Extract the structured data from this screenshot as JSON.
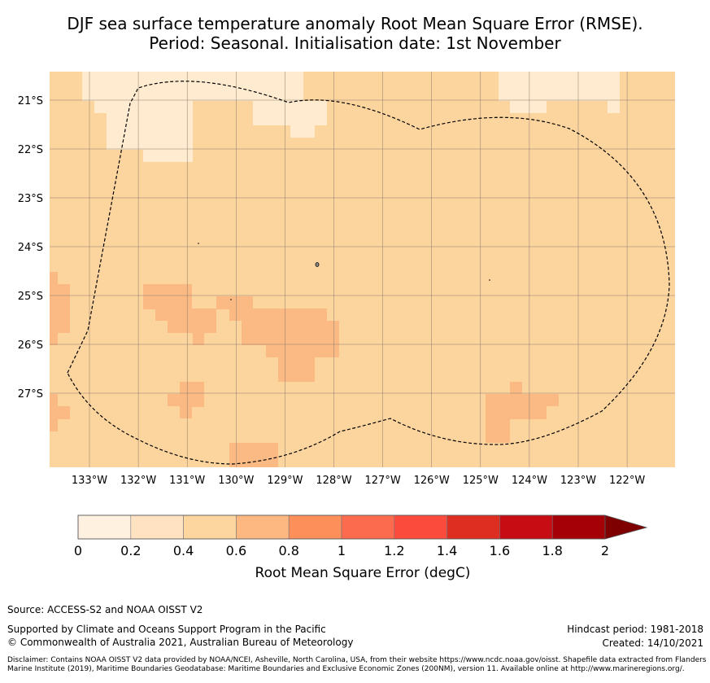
{
  "title": {
    "line1": "DJF sea surface temperature anomaly Root Mean Square Error (RMSE).",
    "line2": "Period: Seasonal. Initialisation date: 1st November"
  },
  "map": {
    "lon_range": [
      -133.8,
      -121.0
    ],
    "lat_range": [
      -28.5,
      -20.45
    ],
    "lon_ticks": [
      "133°W",
      "132°W",
      "131°W",
      "130°W",
      "129°W",
      "128°W",
      "127°W",
      "126°W",
      "125°W",
      "124°W",
      "123°W",
      "122°W"
    ],
    "lat_ticks": [
      "21°S",
      "22°S",
      "23°S",
      "24°S",
      "25°S",
      "26°S",
      "27°S"
    ],
    "grid_color": "#8a7a6a",
    "eez_line_color": "#000000",
    "cell_colors": {
      "lightest": "#ffecd0",
      "base": "#fcd49e",
      "medium": "#fbba84"
    }
  },
  "colorbar": {
    "ticks": [
      "0",
      "0.2",
      "0.4",
      "0.6",
      "0.8",
      "1",
      "1.2",
      "1.4",
      "1.6",
      "1.8",
      "2"
    ],
    "colors": [
      "#fff1e0",
      "#ffe2c2",
      "#fdd59f",
      "#fdb882",
      "#fd8f5b",
      "#fc6b4e",
      "#fb4b3c",
      "#dd2e21",
      "#c70c13",
      "#a50008"
    ],
    "extend_color": "#7f0000",
    "label": "Root Mean Square Error (degC)"
  },
  "footer": {
    "source": "Source: ACCESS-S2 and NOAA OISST V2",
    "support": "Supported by Climate and Oceans Support Program in the Pacific",
    "copyright": "© Commonwealth of Australia 2021, Australian Bureau of Meteorology",
    "hindcast": "Hindcast period: 1981-2018",
    "created": "Created: 14/10/2021",
    "disclaimer": "Disclaimer: Contains NOAA OISST V2 data provided by NOAA/NCEI, Asheville, North Carolina, USA, from their website https://www.ncdc.noaa.gov/oisst. Shapefile data extracted from Flanders Marine Institute (2019), Maritime Boundaries Geodatabase: Maritime Boundaries and Exclusive Economic Zones (200NM), version 11. Available online at http://www.marineregions.org/."
  }
}
